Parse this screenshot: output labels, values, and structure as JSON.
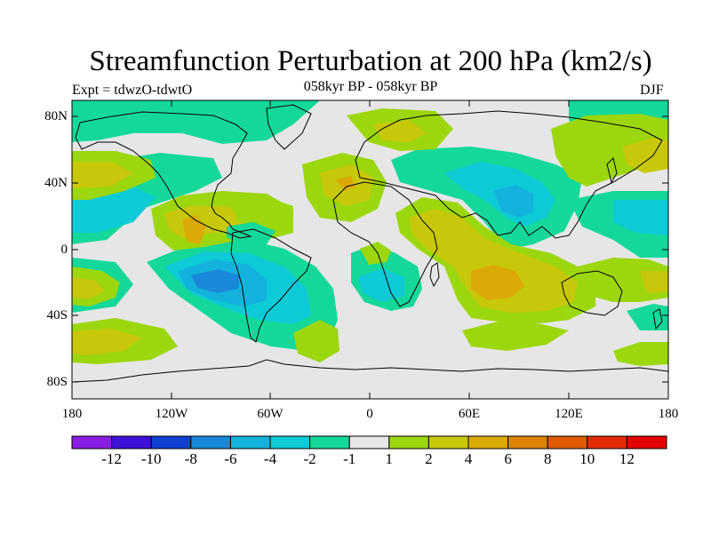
{
  "figure": {
    "title": "Streamfunction Perturbation at 200 hPa (km2/s)",
    "subtitle": "058kyr BP - 058kyr BP",
    "left_label": "Expt = tdwzO-tdwtO",
    "right_label": "DJF",
    "lat_ticks": [
      "80N",
      "40N",
      "0",
      "40S",
      "80S"
    ],
    "lon_ticks": [
      "180",
      "120W",
      "60W",
      "0",
      "60E",
      "120E",
      "180"
    ],
    "colorbar": {
      "labels": [
        "-12",
        "-10",
        "-8",
        "-6",
        "-4",
        "-2",
        "-1",
        "1",
        "2",
        "4",
        "6",
        "8",
        "10",
        "12"
      ],
      "colors": [
        "#8a1ee6",
        "#3e10d8",
        "#1040d2",
        "#1a88d8",
        "#12b2dc",
        "#0ccad6",
        "#14d89a",
        "#e6e6e6",
        "#9cd60c",
        "#c8c80a",
        "#dcaa06",
        "#de8404",
        "#e05a02",
        "#e42a04",
        "#e40202"
      ]
    }
  },
  "chart_data": {
    "type": "map-contour",
    "title": "Streamfunction Perturbation at 200 hPa (km2/s)",
    "subtitle": "058kyr BP - 058kyr BP",
    "season": "DJF",
    "experiment": "tdwzO-tdwtO",
    "x_range_deg": [
      -180,
      180
    ],
    "y_range_deg": [
      -90,
      90
    ],
    "contour_levels": [
      -12,
      -10,
      -8,
      -6,
      -4,
      -2,
      -1,
      1,
      2,
      4,
      6,
      8,
      10,
      12
    ]
  }
}
